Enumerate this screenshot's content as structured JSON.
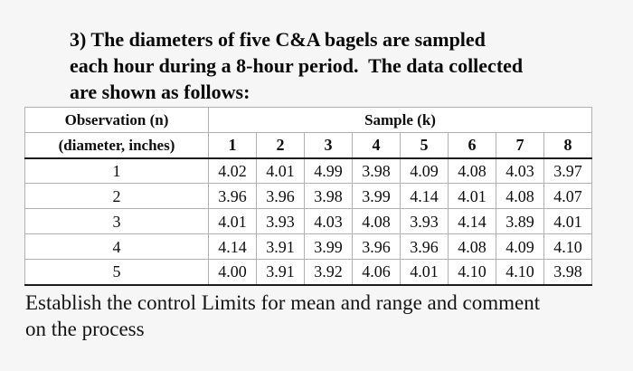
{
  "page": {
    "background_color": "#f6f6f6",
    "title_lines": [
      "3) The diameters of five C&A bagels are sampled",
      "each hour during a 8-hour period.  The data collected",
      "are shown as follows:"
    ],
    "footer_lines": [
      "Establish the control Limits for mean and range and comment",
      "on the process"
    ]
  },
  "table": {
    "header": {
      "observation_label": "Observation (n)",
      "observation_sublabel": "(diameter, inches)",
      "sample_label": "Sample (k)",
      "sample_columns": [
        "1",
        "2",
        "3",
        "4",
        "5",
        "6",
        "7",
        "8"
      ]
    },
    "rows": [
      {
        "observation": "1",
        "values": [
          "4.02",
          "4.01",
          "4.99",
          "3.98",
          "4.09",
          "4.08",
          "4.03",
          "3.97"
        ]
      },
      {
        "observation": "2",
        "values": [
          "3.96",
          "3.96",
          "3.98",
          "3.99",
          "4.14",
          "4.01",
          "4.08",
          "4.07"
        ]
      },
      {
        "observation": "3",
        "values": [
          "4.01",
          "3.93",
          "4.03",
          "4.08",
          "3.93",
          "4.14",
          "3.89",
          "4.01"
        ]
      },
      {
        "observation": "4",
        "values": [
          "4.14",
          "3.91",
          "3.99",
          "3.96",
          "3.96",
          "4.08",
          "4.09",
          "4.10"
        ]
      },
      {
        "observation": "5",
        "values": [
          "4.00",
          "3.91",
          "3.92",
          "4.06",
          "4.01",
          "4.10",
          "4.10",
          "3.98"
        ]
      }
    ]
  },
  "colors": {
    "thin_border": "#b0b0b0",
    "thick_border": "#1c1c1c",
    "table_background": "#ffffff",
    "text": "#0e0e0e"
  }
}
